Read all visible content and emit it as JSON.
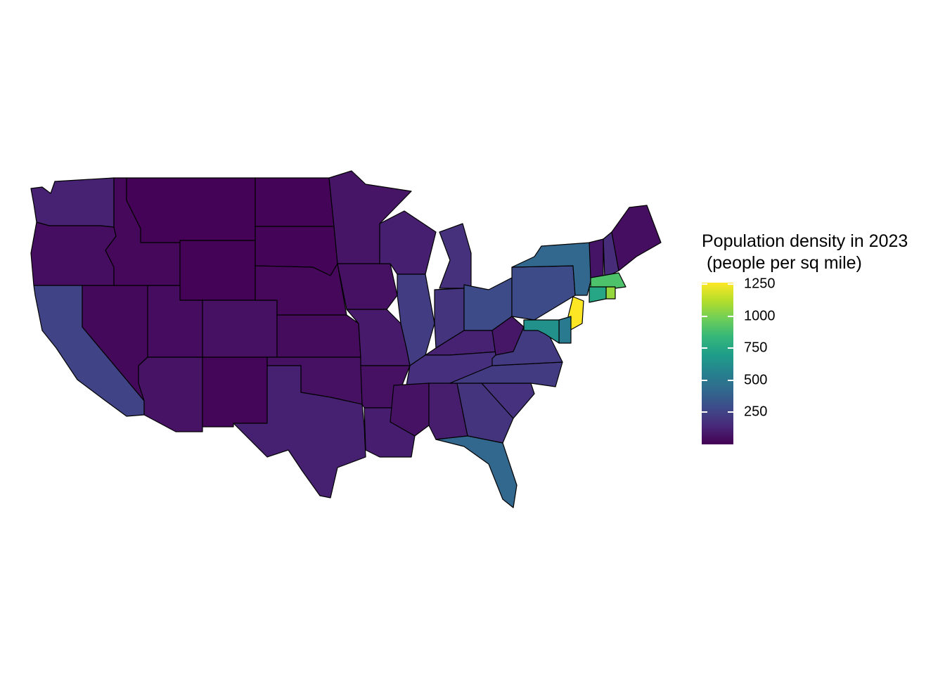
{
  "legend": {
    "title": "Population density in 2023\n (people per sq mile)",
    "scale_min": 0,
    "scale_max": 1263,
    "ticks": [
      {
        "value": 250,
        "label": "250"
      },
      {
        "value": 500,
        "label": "500"
      },
      {
        "value": 750,
        "label": "750"
      },
      {
        "value": 1000,
        "label": "1000"
      },
      {
        "value": 1250,
        "label": "1250"
      }
    ]
  },
  "palette": "viridis",
  "states": [
    {
      "name": "Washington",
      "density": 118
    },
    {
      "name": "Oregon",
      "density": 45
    },
    {
      "name": "California",
      "density": 251
    },
    {
      "name": "Idaho",
      "density": 24
    },
    {
      "name": "Nevada",
      "density": 29
    },
    {
      "name": "Montana",
      "density": 8
    },
    {
      "name": "Wyoming",
      "density": 6
    },
    {
      "name": "Utah",
      "density": 41
    },
    {
      "name": "Arizona",
      "density": 65
    },
    {
      "name": "Colorado",
      "density": 57
    },
    {
      "name": "New Mexico",
      "density": 17
    },
    {
      "name": "North Dakota",
      "density": 11
    },
    {
      "name": "South Dakota",
      "density": 12
    },
    {
      "name": "Nebraska",
      "density": 26
    },
    {
      "name": "Kansas",
      "density": 36
    },
    {
      "name": "Oklahoma",
      "density": 59
    },
    {
      "name": "Texas",
      "density": 114
    },
    {
      "name": "Minnesota",
      "density": 72
    },
    {
      "name": "Iowa",
      "density": 58
    },
    {
      "name": "Missouri",
      "density": 90
    },
    {
      "name": "Arkansas",
      "density": 58
    },
    {
      "name": "Louisiana",
      "density": 105
    },
    {
      "name": "Wisconsin",
      "density": 109
    },
    {
      "name": "Illinois",
      "density": 227
    },
    {
      "name": "Michigan",
      "density": 177
    },
    {
      "name": "Indiana",
      "density": 191
    },
    {
      "name": "Ohio",
      "density": 289
    },
    {
      "name": "Kentucky",
      "density": 115
    },
    {
      "name": "Tennessee",
      "density": 171
    },
    {
      "name": "Mississippi",
      "density": 63
    },
    {
      "name": "Alabama",
      "density": 100
    },
    {
      "name": "Georgia",
      "density": 190
    },
    {
      "name": "Florida",
      "density": 415
    },
    {
      "name": "South Carolina",
      "density": 178
    },
    {
      "name": "North Carolina",
      "density": 220
    },
    {
      "name": "Virginia",
      "density": 220
    },
    {
      "name": "West Virginia",
      "density": 74
    },
    {
      "name": "Pennsylvania",
      "density": 290
    },
    {
      "name": "New York",
      "density": 415
    },
    {
      "name": "Vermont",
      "density": 70
    },
    {
      "name": "New Hampshire",
      "density": 157
    },
    {
      "name": "Maine",
      "density": 45
    },
    {
      "name": "Massachusetts",
      "density": 903
    },
    {
      "name": "Rhode Island",
      "density": 1063
    },
    {
      "name": "Connecticut",
      "density": 745
    },
    {
      "name": "New Jersey",
      "density": 1263
    },
    {
      "name": "Delaware",
      "density": 517
    },
    {
      "name": "Maryland",
      "density": 636
    }
  ]
}
